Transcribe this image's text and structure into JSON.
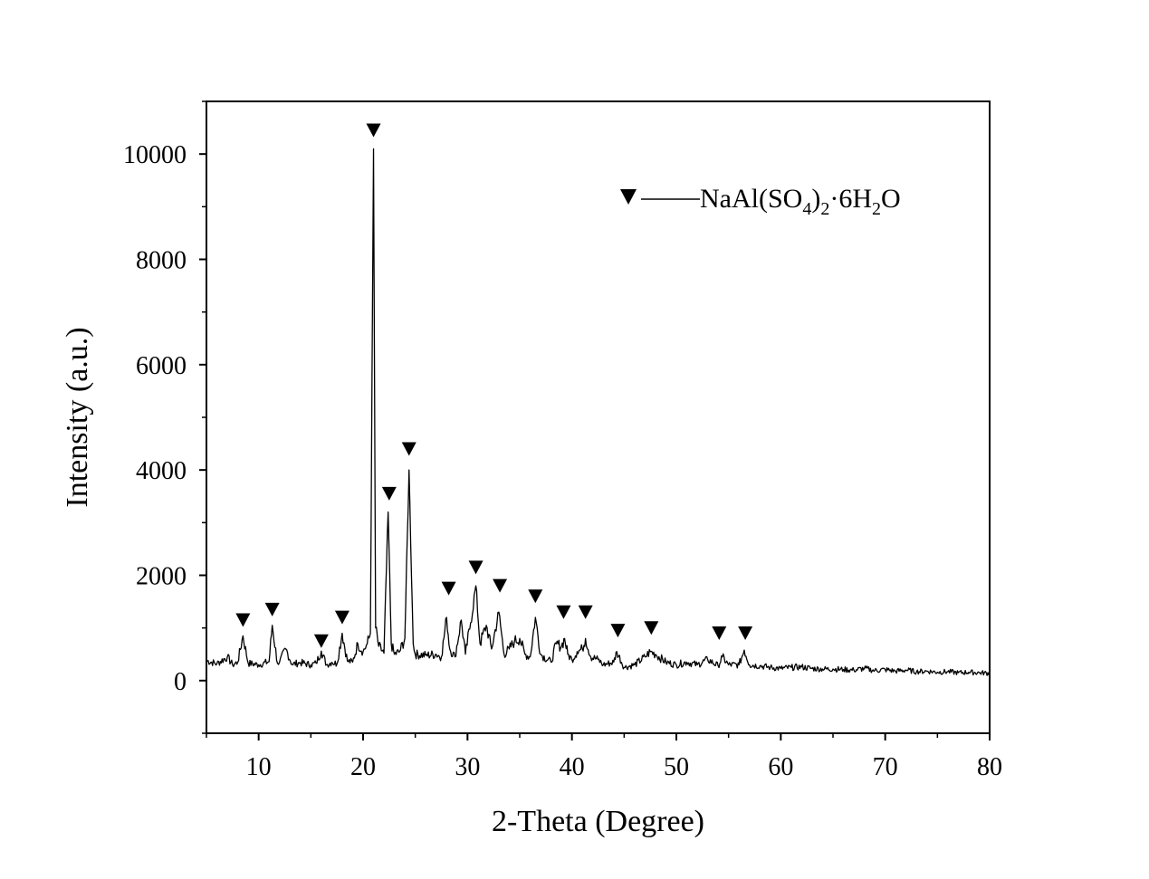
{
  "chart_data": {
    "type": "line",
    "xlabel": "2-Theta (Degree)",
    "ylabel": "Intensity (a.u.)",
    "xlim": [
      5,
      80
    ],
    "ylim": [
      -1000,
      11000
    ],
    "x_ticks": [
      10,
      20,
      30,
      40,
      50,
      60,
      70,
      80
    ],
    "y_ticks": [
      0,
      2000,
      4000,
      6000,
      8000,
      10000
    ],
    "grid": false,
    "legend_position": "top-right",
    "legend": {
      "marker": "down-triangle",
      "label_parts": [
        {
          "text": "NaAl(SO",
          "sub": false
        },
        {
          "text": "4",
          "sub": true
        },
        {
          "text": ")",
          "sub": false
        },
        {
          "text": "2",
          "sub": true
        },
        {
          "text": "·6H",
          "sub": false
        },
        {
          "text": "2",
          "sub": true
        },
        {
          "text": "O",
          "sub": false
        }
      ]
    },
    "series": [
      {
        "x": [
          5,
          6,
          7,
          7.5,
          8,
          8.5,
          9,
          10,
          11,
          11.3,
          11.8,
          12,
          12.6,
          13.2,
          14,
          15,
          15.5,
          16,
          16.5,
          17,
          17.5,
          18,
          18.5,
          19,
          19.5,
          20,
          20.4,
          20.7,
          21,
          21.2,
          21.5,
          22,
          22.4,
          22.7,
          23,
          23.5,
          24,
          24.4,
          24.8,
          25,
          26,
          27,
          27.5,
          28,
          28.3,
          28.8,
          29.4,
          29.8,
          30.3,
          30.8,
          31.2,
          31.8,
          32.3,
          33,
          33.5,
          34,
          34.5,
          35,
          35.5,
          36,
          36.5,
          37,
          38,
          38.5,
          39,
          39.3,
          39.6,
          40,
          40.5,
          41,
          41.3,
          41.8,
          42.5,
          43,
          44,
          44.3,
          45,
          46,
          47,
          47.5,
          48,
          49,
          50,
          51,
          52,
          53,
          54,
          54.4,
          55,
          56,
          56.5,
          57,
          58,
          59,
          60,
          61,
          62,
          63,
          64,
          65,
          66,
          67,
          68,
          69,
          70,
          71,
          72,
          73,
          74,
          75,
          76,
          77,
          78,
          79,
          80
        ],
        "y": [
          380,
          320,
          450,
          300,
          350,
          850,
          330,
          300,
          360,
          1050,
          330,
          350,
          600,
          310,
          340,
          300,
          330,
          560,
          300,
          350,
          320,
          900,
          370,
          350,
          700,
          550,
          700,
          900,
          10100,
          1000,
          650,
          520,
          3200,
          700,
          500,
          550,
          800,
          4000,
          700,
          500,
          480,
          500,
          450,
          1200,
          600,
          450,
          1150,
          500,
          1100,
          1800,
          700,
          1050,
          600,
          1300,
          500,
          600,
          750,
          800,
          500,
          450,
          1200,
          500,
          350,
          700,
          650,
          800,
          500,
          400,
          550,
          600,
          800,
          450,
          400,
          300,
          350,
          550,
          250,
          300,
          450,
          550,
          500,
          350,
          300,
          350,
          300,
          400,
          280,
          450,
          300,
          300,
          580,
          300,
          280,
          250,
          230,
          250,
          260,
          230,
          220,
          220,
          210,
          200,
          230,
          190,
          210,
          180,
          200,
          170,
          180,
          160,
          170,
          150,
          160,
          150,
          140
        ]
      }
    ],
    "peak_markers_x": [
      8.5,
      11.3,
      16,
      18,
      21,
      22.5,
      24.4,
      28.2,
      30.8,
      33.1,
      36.5,
      39.2,
      41.3,
      44.4,
      47.6,
      54.1,
      56.6
    ],
    "peak_markers_y": [
      900,
      1100,
      500,
      950,
      10200,
      3300,
      4150,
      1500,
      1900,
      1550,
      1350,
      1050,
      1050,
      700,
      750,
      650,
      650
    ]
  }
}
